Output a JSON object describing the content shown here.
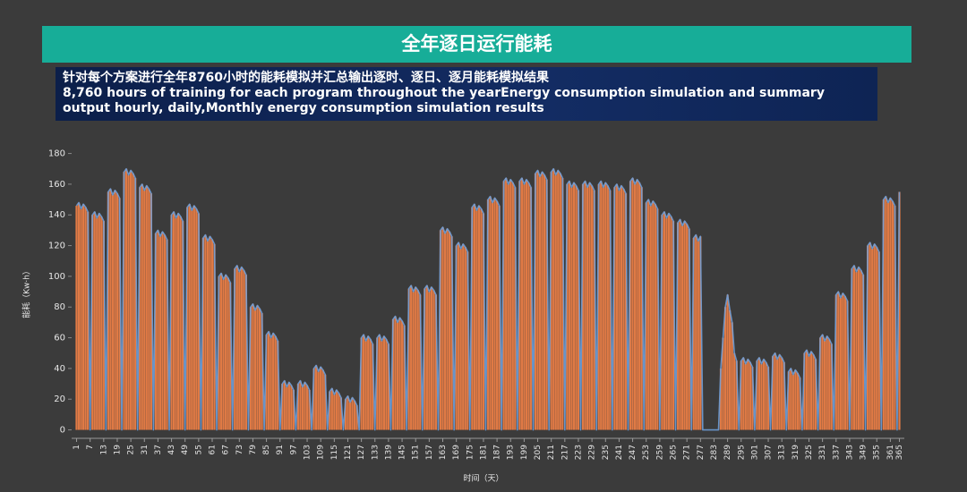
{
  "header": {
    "title": "全年逐日运行能耗",
    "lines": [
      "针对每个方案进行全年8760小时的能耗模拟并汇总输出逐时、逐日、逐月能耗模拟结果",
      "8,760 hours of training for each program throughout the yearEnergy consumption simulation and summary",
      "output hourly, daily,Monthly energy consumption simulation results"
    ]
  },
  "chart_data": {
    "type": "bar",
    "x_label": "时间（天）",
    "y_label": "能耗（Kw·h）",
    "color": "#e07a45",
    "line_color": "#6f9fd8",
    "ylim": [
      -5.5,
      185
    ],
    "yticks": [
      0,
      20,
      40,
      60,
      80,
      100,
      120,
      140,
      160,
      180
    ],
    "xlim": [
      0,
      366
    ],
    "xticks": [
      1,
      7,
      13,
      19,
      25,
      31,
      37,
      43,
      49,
      55,
      61,
      67,
      73,
      79,
      85,
      91,
      97,
      103,
      109,
      115,
      121,
      127,
      133,
      139,
      145,
      151,
      157,
      163,
      169,
      175,
      181,
      187,
      193,
      199,
      205,
      211,
      217,
      223,
      229,
      235,
      241,
      247,
      253,
      259,
      265,
      271,
      277,
      283,
      289,
      295,
      301,
      307,
      313,
      319,
      325,
      331,
      337,
      343,
      349,
      355,
      361,
      365
    ],
    "x": [
      1,
      2,
      3,
      4,
      5,
      6,
      7,
      8,
      9,
      10,
      11,
      12,
      13,
      14,
      15,
      16,
      17,
      18,
      19,
      20,
      21,
      22,
      23,
      24,
      25,
      26,
      27,
      28,
      29,
      30,
      31,
      32,
      33,
      34,
      35,
      36,
      37,
      38,
      39,
      40,
      41,
      42,
      43,
      44,
      45,
      46,
      47,
      48,
      49,
      50,
      51,
      52,
      53,
      54,
      55,
      56,
      57,
      58,
      59,
      60,
      61,
      62,
      63,
      64,
      65,
      66,
      67,
      68,
      69,
      70,
      71,
      72,
      73,
      74,
      75,
      76,
      77,
      78,
      79,
      80,
      81,
      82,
      83,
      84,
      85,
      86,
      87,
      88,
      89,
      90,
      91,
      92,
      93,
      94,
      95,
      96,
      97,
      98,
      99,
      100,
      101,
      102,
      103,
      104,
      105,
      106,
      107,
      108,
      109,
      110,
      111,
      112,
      113,
      114,
      115,
      116,
      117,
      118,
      119,
      120,
      121,
      122,
      123,
      124,
      125,
      126,
      127,
      128,
      129,
      130,
      131,
      132,
      133,
      134,
      135,
      136,
      137,
      138,
      139,
      140,
      141,
      142,
      143,
      144,
      145,
      146,
      147,
      148,
      149,
      150,
      151,
      152,
      153,
      154,
      155,
      156,
      157,
      158,
      159,
      160,
      161,
      162,
      163,
      164,
      165,
      166,
      167,
      168,
      169,
      170,
      171,
      172,
      173,
      174,
      175,
      176,
      177,
      178,
      179,
      180,
      181,
      182,
      183,
      184,
      185,
      186,
      187,
      188,
      189,
      190,
      191,
      192,
      193,
      194,
      195,
      196,
      197,
      198,
      199,
      200,
      201,
      202,
      203,
      204,
      205,
      206,
      207,
      208,
      209,
      210,
      211,
      212,
      213,
      214,
      215,
      216,
      217,
      218,
      219,
      220,
      221,
      222,
      223,
      224,
      225,
      226,
      227,
      228,
      229,
      230,
      231,
      232,
      233,
      234,
      235,
      236,
      237,
      238,
      239,
      240,
      241,
      242,
      243,
      244,
      245,
      246,
      247,
      248,
      249,
      250,
      251,
      252,
      253,
      254,
      255,
      256,
      257,
      258,
      259,
      260,
      261,
      262,
      263,
      264,
      265,
      266,
      267,
      268,
      269,
      270,
      271,
      272,
      273,
      274,
      275,
      276,
      277,
      278,
      279,
      280,
      281,
      282,
      283,
      284,
      285,
      286,
      287,
      288,
      289,
      290,
      291,
      292,
      293,
      294,
      295,
      296,
      297,
      298,
      299,
      300,
      301,
      302,
      303,
      304,
      305,
      306,
      307,
      308,
      309,
      310,
      311,
      312,
      313,
      314,
      315,
      316,
      317,
      318,
      319,
      320,
      321,
      322,
      323,
      324,
      325,
      326,
      327,
      328,
      329,
      330,
      331,
      332,
      333,
      334,
      335,
      336,
      337,
      338,
      339,
      340,
      341,
      342,
      343,
      344,
      345,
      346,
      347,
      348,
      349,
      350,
      351,
      352,
      353,
      354,
      355,
      356,
      357,
      358,
      359,
      360,
      361,
      362,
      363,
      364,
      365
    ],
    "values": [
      146,
      148,
      144,
      147,
      145,
      142,
      0,
      140,
      142,
      138,
      141,
      139,
      136,
      0,
      155,
      157,
      153,
      156,
      154,
      151,
      0,
      168,
      170,
      166,
      169,
      167,
      164,
      0,
      158,
      160,
      156,
      159,
      157,
      154,
      0,
      128,
      130,
      126,
      129,
      127,
      124,
      0,
      140,
      142,
      138,
      141,
      139,
      136,
      0,
      145,
      147,
      143,
      146,
      144,
      141,
      0,
      125,
      127,
      123,
      126,
      124,
      121,
      0,
      100,
      102,
      98,
      101,
      99,
      96,
      0,
      105,
      107,
      103,
      106,
      104,
      101,
      0,
      80,
      82,
      78,
      81,
      79,
      76,
      0,
      62,
      64,
      60,
      63,
      61,
      58,
      0,
      30,
      32,
      28,
      31,
      29,
      26,
      0,
      30,
      32,
      28,
      31,
      29,
      26,
      0,
      40,
      42,
      38,
      41,
      39,
      36,
      0,
      25,
      27,
      23,
      26,
      24,
      21,
      0,
      20,
      22,
      18,
      21,
      19,
      16,
      0,
      60,
      62,
      58,
      61,
      59,
      56,
      0,
      60,
      62,
      58,
      61,
      59,
      56,
      0,
      72,
      74,
      70,
      73,
      71,
      68,
      0,
      92,
      94,
      90,
      93,
      91,
      88,
      0,
      92,
      94,
      90,
      93,
      91,
      88,
      0,
      130,
      132,
      128,
      131,
      129,
      126,
      0,
      120,
      122,
      118,
      121,
      119,
      116,
      0,
      145,
      147,
      143,
      146,
      144,
      141,
      0,
      150,
      152,
      148,
      151,
      149,
      146,
      0,
      162,
      164,
      160,
      163,
      161,
      158,
      0,
      162,
      164,
      160,
      163,
      161,
      158,
      0,
      167,
      169,
      165,
      168,
      166,
      163,
      0,
      168,
      170,
      166,
      169,
      167,
      164,
      0,
      160,
      162,
      158,
      161,
      159,
      156,
      0,
      160,
      162,
      158,
      161,
      159,
      156,
      0,
      160,
      162,
      158,
      161,
      159,
      156,
      0,
      158,
      160,
      156,
      159,
      157,
      154,
      0,
      162,
      164,
      160,
      163,
      161,
      158,
      0,
      148,
      150,
      146,
      149,
      147,
      144,
      0,
      140,
      142,
      138,
      141,
      139,
      136,
      0,
      135,
      137,
      133,
      136,
      134,
      131,
      0,
      125,
      127,
      123,
      126,
      0,
      0,
      0,
      0,
      0,
      0,
      0,
      0,
      40,
      60,
      80,
      88,
      78,
      70,
      50,
      45,
      0,
      45,
      47,
      43,
      46,
      44,
      41,
      0,
      45,
      47,
      43,
      46,
      44,
      41,
      0,
      48,
      50,
      46,
      49,
      47,
      44,
      0,
      38,
      40,
      36,
      39,
      37,
      34,
      0,
      50,
      52,
      48,
      51,
      49,
      46,
      0,
      60,
      62,
      58,
      61,
      59,
      56,
      0,
      88,
      90,
      86,
      89,
      87,
      84,
      0,
      105,
      107,
      103,
      106,
      104,
      101,
      0,
      120,
      122,
      118,
      121,
      119,
      116,
      0,
      150,
      152,
      148,
      151,
      149,
      146,
      0,
      155
    ]
  }
}
